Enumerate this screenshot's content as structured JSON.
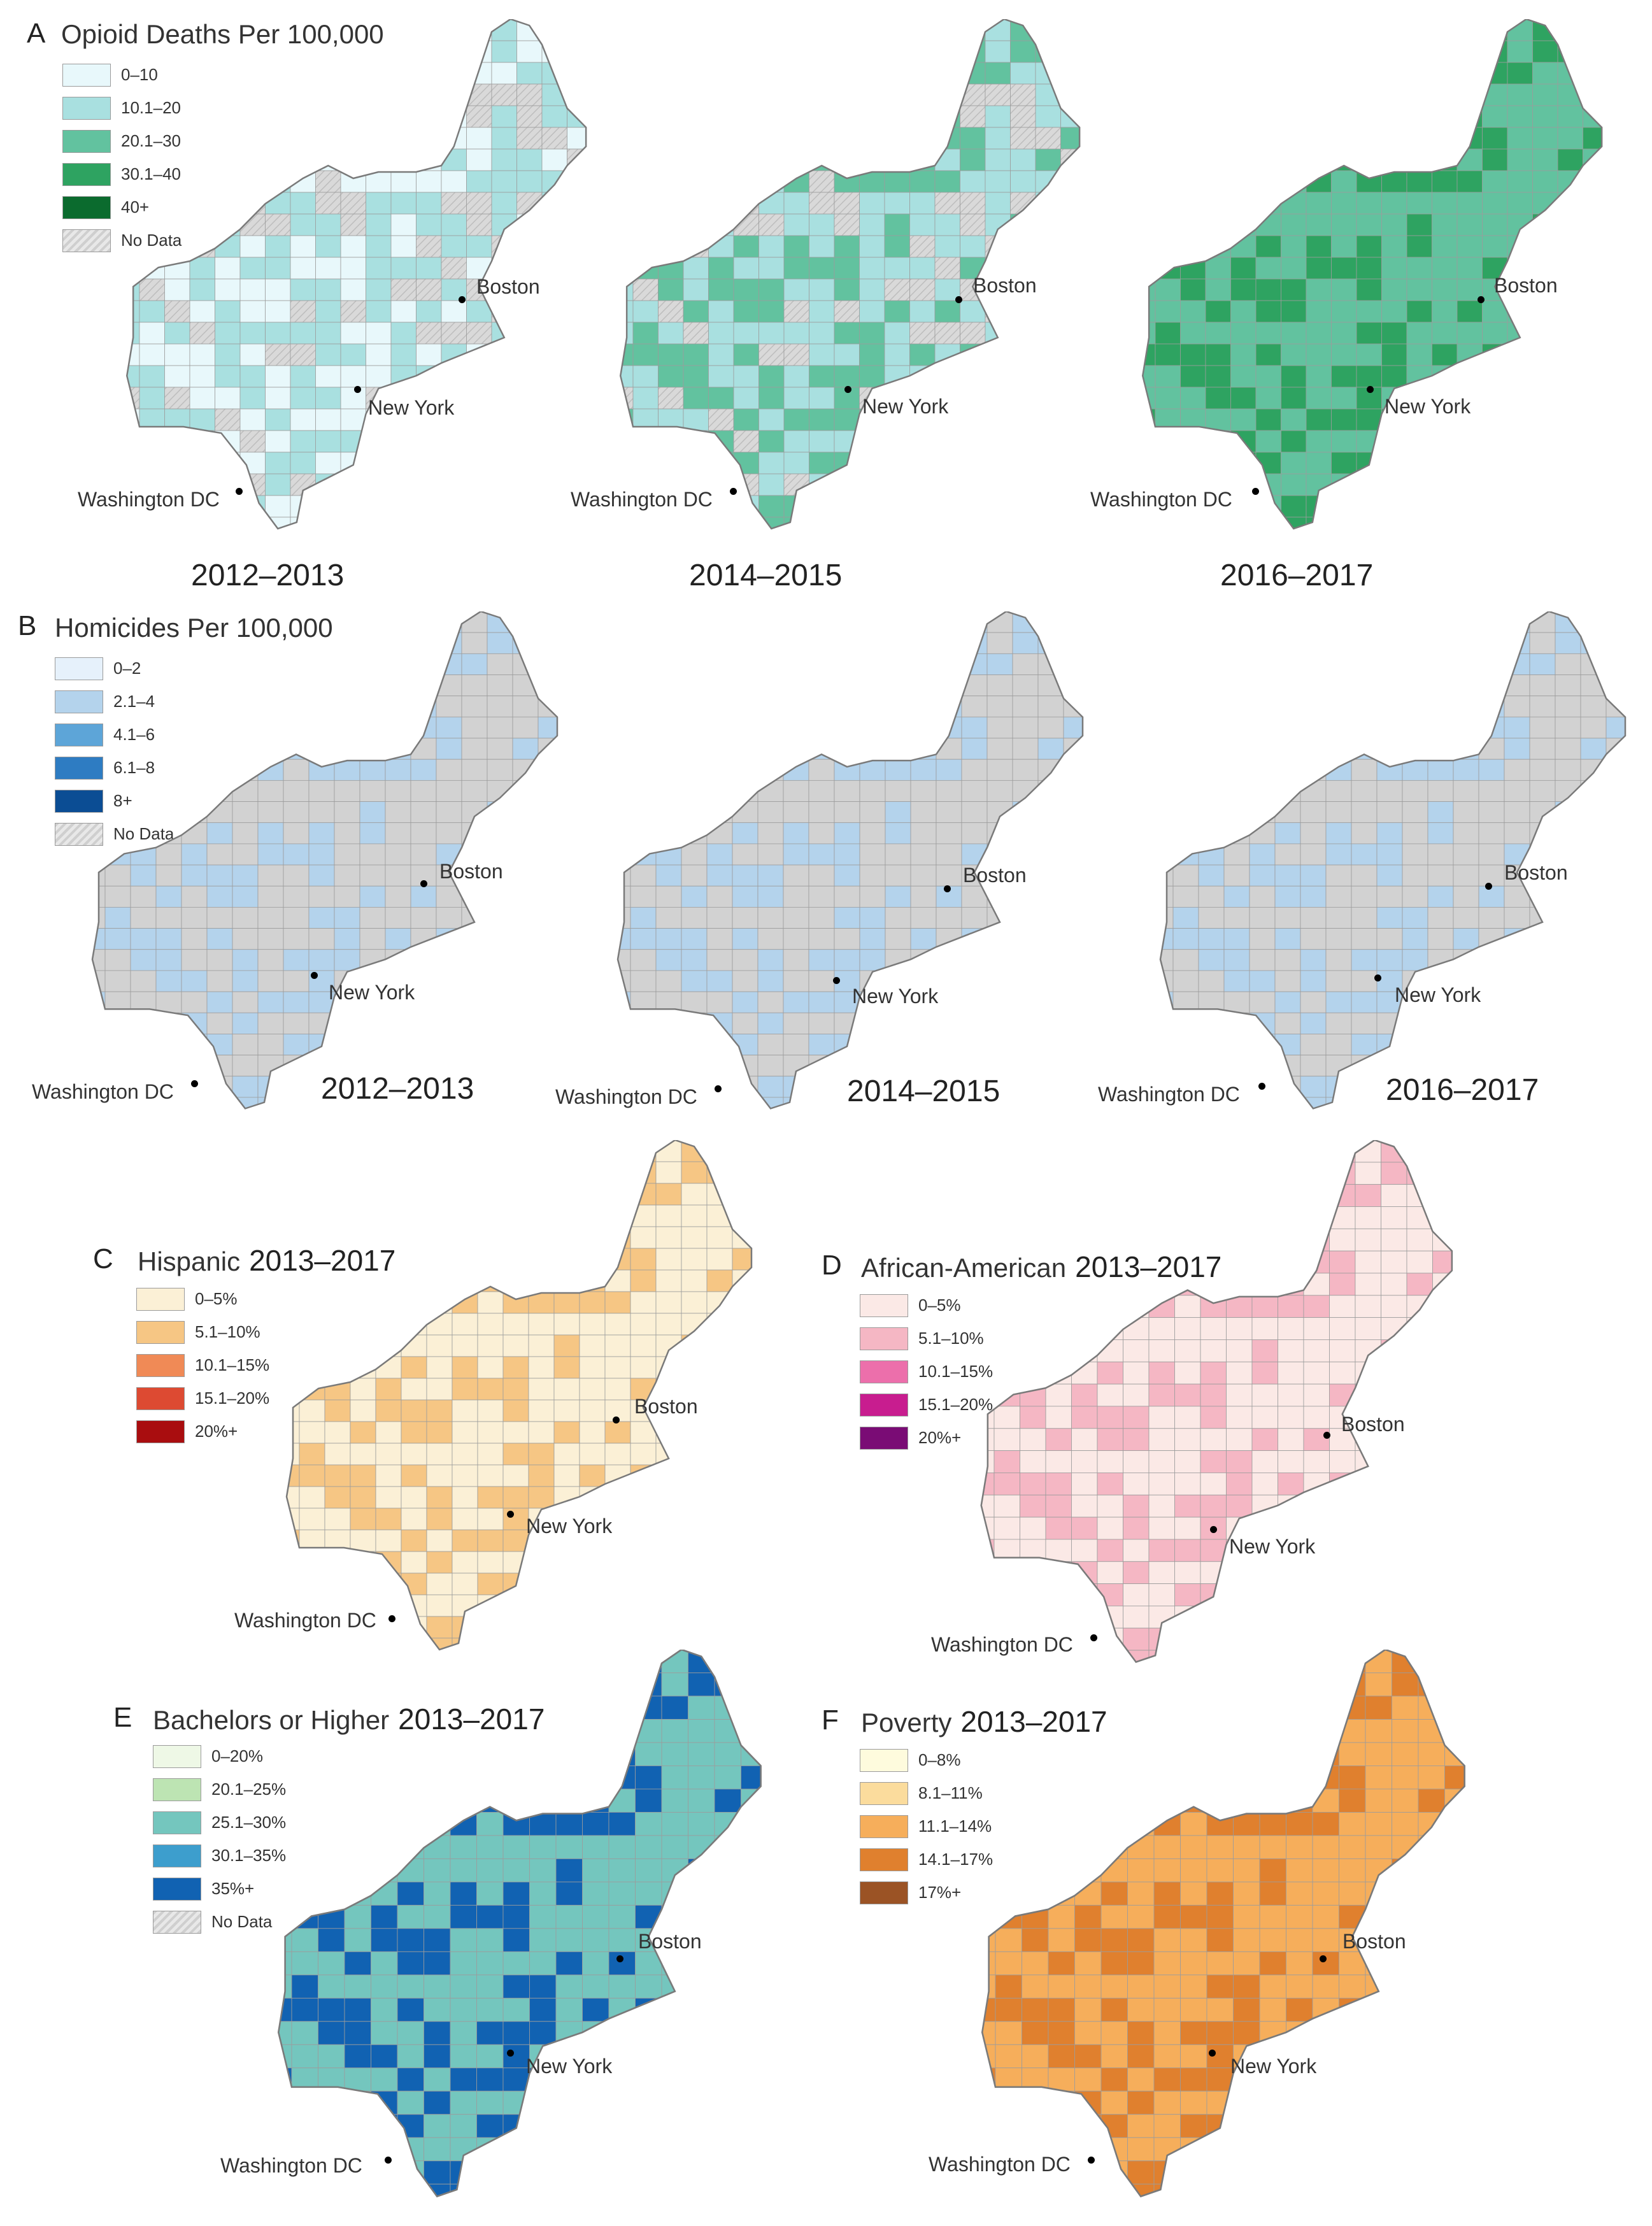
{
  "panels": {
    "A": {
      "letter": "A",
      "title": "Opioid Deaths Per 100,000",
      "legend": [
        {
          "label": "0–10",
          "color": "#e8f8fb"
        },
        {
          "label": "10.1–20",
          "color": "#a9e0e0"
        },
        {
          "label": "20.1–30",
          "color": "#62c29f"
        },
        {
          "label": "30.1–40",
          "color": "#2ea361"
        },
        {
          "label": "40+",
          "color": "#0b6b2e"
        },
        {
          "label": "No Data",
          "color": "hatch"
        }
      ],
      "maps": [
        {
          "period": "2012–2013",
          "boston": "Boston",
          "new_york": "New York",
          "washington": "Washington DC"
        },
        {
          "period": "2014–2015",
          "boston": "Boston",
          "new_york": "New York",
          "washington": "Washington DC"
        },
        {
          "period": "2016–2017",
          "boston": "Boston",
          "new_york": "New York",
          "washington": "Washington DC"
        }
      ]
    },
    "B": {
      "letter": "B",
      "title": "Homicides Per 100,000",
      "legend": [
        {
          "label": "0–2",
          "color": "#e6f1fb"
        },
        {
          "label": "2.1–4",
          "color": "#b4d3ec"
        },
        {
          "label": "4.1–6",
          "color": "#5da5d8"
        },
        {
          "label": "6.1–8",
          "color": "#2e7cc2"
        },
        {
          "label": "8+",
          "color": "#0b4d94"
        },
        {
          "label": "No Data",
          "color": "hatch"
        }
      ],
      "maps": [
        {
          "period": "2012–2013",
          "boston": "Boston",
          "new_york": "New York",
          "washington": "Washington DC"
        },
        {
          "period": "2014–2015",
          "boston": "Boston",
          "new_york": "New York",
          "washington": "Washington DC"
        },
        {
          "period": "2016–2017",
          "boston": "Boston",
          "new_york": "New York",
          "washington": "Washington DC"
        }
      ]
    },
    "C": {
      "letter": "C",
      "title": "Hispanic",
      "period": "2013–2017",
      "legend": [
        {
          "label": "0–5%",
          "color": "#fbf0d6"
        },
        {
          "label": "5.1–10%",
          "color": "#f6c684"
        },
        {
          "label": "10.1–15%",
          "color": "#f08a56"
        },
        {
          "label": "15.1–20%",
          "color": "#dd4a32"
        },
        {
          "label": "20%+",
          "color": "#a90d0f"
        }
      ],
      "boston": "Boston",
      "new_york": "New York",
      "washington": "Washington DC"
    },
    "D": {
      "letter": "D",
      "title": "African-American",
      "period": "2013–2017",
      "legend": [
        {
          "label": "0–5%",
          "color": "#fbe9e6"
        },
        {
          "label": "5.1–10%",
          "color": "#f5b7c4"
        },
        {
          "label": "10.1–15%",
          "color": "#ec6fab"
        },
        {
          "label": "15.1–20%",
          "color": "#c81d8f"
        },
        {
          "label": "20%+",
          "color": "#7a0c75"
        }
      ],
      "boston": "Boston",
      "new_york": "New York",
      "washington": "Washington DC"
    },
    "E": {
      "letter": "E",
      "title": "Bachelors or Higher",
      "period": "2013–2017",
      "legend": [
        {
          "label": "0–20%",
          "color": "#eef8e6"
        },
        {
          "label": "20.1–25%",
          "color": "#bde4b3"
        },
        {
          "label": "25.1–30%",
          "color": "#74c6be"
        },
        {
          "label": "30.1–35%",
          "color": "#3d9ecd"
        },
        {
          "label": "35%+",
          "color": "#1162b2"
        },
        {
          "label": "No Data",
          "color": "hatch"
        }
      ],
      "boston": "Boston",
      "new_york": "New York",
      "washington": "Washington DC"
    },
    "F": {
      "letter": "F",
      "title": "Poverty",
      "period": "2013–2017",
      "legend": [
        {
          "label": "0–8%",
          "color": "#fefbdd"
        },
        {
          "label": "8.1–11%",
          "color": "#fbdc9d"
        },
        {
          "label": "11.1–14%",
          "color": "#f6ae5b"
        },
        {
          "label": "14.1–17%",
          "color": "#e0802e"
        },
        {
          "label": "17%+",
          "color": "#9b5325"
        }
      ],
      "boston": "Boston",
      "new_york": "New York",
      "washington": "Washington DC"
    }
  }
}
